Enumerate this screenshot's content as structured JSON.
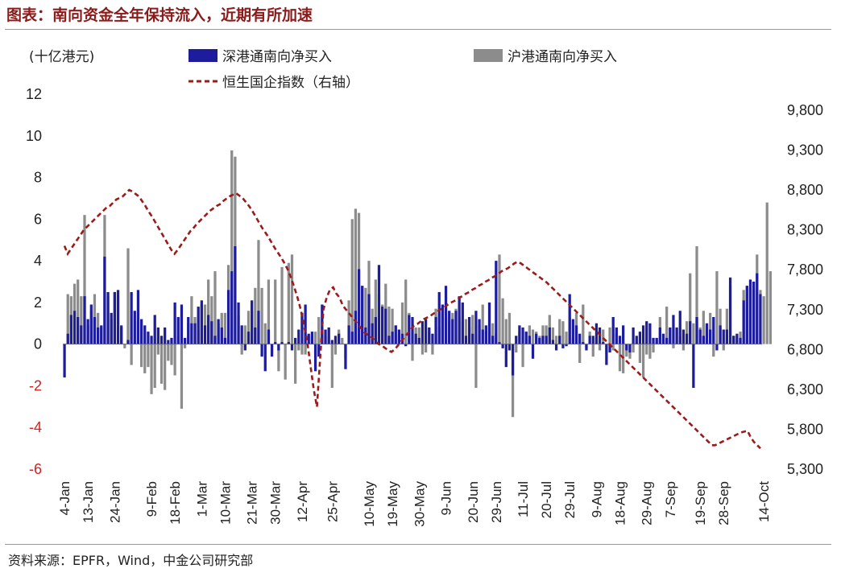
{
  "page": {
    "title": "图表：南向资金全年保持流入，近期有所加速",
    "source": "资料来源：EPFR，Wind，中金公司研究部"
  },
  "chart_data": {
    "type": "bar",
    "unit_label": "(十亿港元)",
    "colors": {
      "sz": "#1c1c9c",
      "sh": "#8c8c8c",
      "hscei": "#9b1b1b",
      "negative_tick": "#d42020"
    },
    "legend": {
      "sz": "深港通南向净买入",
      "sh": "沪港通南向净买入",
      "hscei": "恒生国企指数（右轴）"
    },
    "y_left": {
      "min": -6,
      "max": 12,
      "ticks": [
        12,
        10,
        8,
        6,
        4,
        2,
        0,
        -2,
        -4,
        -6
      ]
    },
    "y_right": {
      "min": 5300,
      "max": 9800,
      "ticks": [
        "9,800",
        "9,300",
        "8,800",
        "8,300",
        "7,800",
        "7,300",
        "6,800",
        "6,300",
        "5,800",
        "5,300"
      ]
    },
    "x_tick_labels": [
      "4-Jan",
      "13-Jan",
      "24-Jan",
      "9-Feb",
      "18-Feb",
      "1-Mar",
      "10-Mar",
      "21-Mar",
      "30-Mar",
      "12-Apr",
      "25-Apr",
      "10-May",
      "19-May",
      "30-May",
      "9-Jun",
      "20-Jun",
      "29-Jun",
      "11-Jul",
      "20-Jul",
      "29-Jul",
      "9-Aug",
      "18-Aug",
      "29-Aug",
      "7-Sep",
      "19-Sep",
      "28-Sep",
      "14-Oct"
    ],
    "x_tick_index": [
      0,
      7,
      15,
      26,
      33,
      41,
      48,
      56,
      63,
      71,
      80,
      91,
      98,
      106,
      114,
      122,
      129,
      137,
      144,
      151,
      159,
      166,
      174,
      181,
      190,
      197,
      209
    ],
    "series": [
      {
        "name": "深港通南向净买入",
        "values": [
          -1.6,
          0.5,
          1.4,
          1.6,
          1.3,
          0.9,
          2.3,
          1.2,
          1.9,
          1.3,
          0.8,
          0.9,
          4.2,
          2.5,
          1.5,
          2.5,
          2.6,
          0.9,
          0.0,
          0.2,
          2.5,
          1.6,
          2.6,
          1.2,
          0.9,
          0.6,
          0.4,
          1.4,
          0.8,
          0.4,
          0.8,
          0.2,
          0.3,
          2.0,
          1.3,
          1.9,
          0.3,
          1.3,
          1.0,
          1.0,
          1.8,
          2.1,
          0.9,
          1.4,
          1.1,
          0.4,
          1.2,
          0.8,
          0.3,
          2.6,
          3.5,
          4.7,
          2.0,
          0.9,
          -0.3,
          0.6,
          2.1,
          0.8,
          1.6,
          -0.6,
          -1.3,
          0.7,
          -0.6,
          0.1,
          -0.3,
          0.1,
          0.0,
          0.1,
          -0.3,
          0.3,
          0.7,
          1.5,
          1.9,
          0.5,
          0.6,
          -1.3,
          -0.6,
          1.9,
          0.7,
          0.8,
          0.2,
          0.4,
          0.5,
          0.0,
          -1.2,
          0.9,
          0.6,
          1.6,
          3.6,
          2.8,
          0.8,
          2.4,
          1.0,
          1.3,
          3.8,
          1.8,
          1.7,
          0.4,
          0.6,
          0.9,
          0.7,
          0.5,
          -0.1,
          1.4,
          1.3,
          0.5,
          0.3,
          1.1,
          1.2,
          0.8,
          0.5,
          1.3,
          2.5,
          1.9,
          2.8,
          1.6,
          1.2,
          1.6,
          2.3,
          2.0,
          0.4,
          1.3,
          0.5,
          1.6,
          1.2,
          0.7,
          0.9,
          2.0,
          0.4,
          4.0,
          0.1,
          -0.2,
          -1.1,
          -0.3,
          -1.5,
          0.4,
          0.9,
          0.8,
          0.6,
          0.4,
          -0.7,
          0.5,
          0.3,
          0.4,
          0.4,
          0.8,
          0.2,
          -0.3,
          0.4,
          -0.2,
          -0.1,
          2.4,
          1.2,
          0.9,
          0.5,
          0.1,
          -0.3,
          0.4,
          0.4,
          1.0,
          0.8,
          0.1,
          -1.0,
          -0.4,
          1.3,
          0.8,
          0.4,
          0.9,
          -0.3,
          -0.4,
          0.8,
          0.4,
          0.6,
          0.9,
          1.1,
          1.0,
          0.3,
          0.3,
          0.8,
          0.5,
          0.3,
          0.8,
          1.4,
          0.8,
          1.6,
          0.7,
          0.5,
          1.1,
          -2.1,
          1.3,
          0.7,
          0.4,
          1.0,
          0.7,
          1.3,
          -0.3,
          0.9,
          0.7,
          0.7,
          3.2,
          0.4,
          0.5,
          0.3,
          2.1,
          2.8,
          3.1,
          3.0,
          3.4,
          2.4
        ]
      },
      {
        "name": "沪港通南向净买入",
        "values": [
          0.0,
          2.4,
          2.3,
          2.9,
          3.1,
          2.3,
          6.2,
          0.9,
          1.6,
          2.4,
          1.5,
          0.8,
          6.2,
          2.3,
          1.2,
          2.5,
          2.3,
          0.8,
          -0.2,
          4.6,
          -1.0,
          0.1,
          1.1,
          -1.1,
          -1.4,
          -1.1,
          -2.4,
          -2.1,
          -0.5,
          -1.9,
          -2.2,
          -0.8,
          -1.0,
          -1.5,
          0.4,
          -3.1,
          -0.2,
          1.0,
          2.3,
          1.3,
          0.7,
          1.9,
          1.9,
          3.1,
          2.3,
          3.5,
          1.0,
          1.5,
          1.5,
          3.8,
          9.3,
          9.0,
          1.4,
          -0.5,
          0.9,
          1.6,
          1.6,
          2.7,
          5.0,
          2.7,
          1.0,
          3.1,
          -0.4,
          3.1,
          -1.3,
          3.7,
          -1.7,
          3.9,
          4.3,
          -1.9,
          -0.3,
          -0.5,
          -0.5,
          0.1,
          0.4,
          0.6,
          1.3,
          1.1,
          0.4,
          0.8,
          -2.1,
          -0.5,
          0.7,
          0.3,
          -0.7,
          2.1,
          6.0,
          6.5,
          6.3,
          2.8,
          2.7,
          4.0,
          1.7,
          3.1,
          2.4,
          1.9,
          2.9,
          1.8,
          1.7,
          0.9,
          0.5,
          2.0,
          3.1,
          1.5,
          -0.8,
          0.8,
          0.8,
          -0.5,
          -0.4,
          0.6,
          -0.5,
          1.7,
          0.8,
          1.5,
          1.3,
          1.1,
          1.5,
          1.7,
          1.3,
          1.1,
          1.2,
          0.8,
          1.4,
          -2.1,
          0.9,
          1.9,
          0.6,
          0.6,
          1.0,
          0.5,
          4.3,
          2.2,
          1.2,
          1.5,
          -3.5,
          -0.4,
          0.6,
          -1.1,
          0.6,
          0.9,
          0.7,
          0.6,
          0.4,
          0.9,
          0.9,
          1.4,
          0.8,
          0.4,
          1.2,
          1.1,
          0.6,
          1.3,
          0.3,
          1.5,
          -0.9,
          1.9,
          -0.2,
          0.6,
          -0.6,
          0.3,
          -0.3,
          0.7,
          -0.5,
          0.8,
          -0.3,
          0.5,
          -1.3,
          -1.4,
          -0.6,
          -0.7,
          -0.4,
          0.1,
          -0.9,
          -1.6,
          -0.5,
          -0.7,
          -0.4,
          0.2,
          1.3,
          0.2,
          1.8,
          0.8,
          -0.2,
          0.7,
          0.4,
          -0.3,
          1.1,
          3.4,
          1.0,
          4.7,
          0.8,
          1.6,
          0.9,
          1.5,
          -0.6,
          3.5,
          1.7,
          -0.3,
          1.7,
          2.8,
          0.4,
          0.4,
          0.6,
          2.6,
          2.8,
          2.6,
          2.7,
          4.3,
          2.6,
          2.3,
          6.8,
          3.5
        ]
      },
      {
        "name": "恒生国企指数（右轴）",
        "axis": "right",
        "values": [
          8100,
          8000,
          8060,
          8120,
          8180,
          8240,
          8300,
          8340,
          8380,
          8420,
          8460,
          8500,
          8540,
          8580,
          8600,
          8640,
          8680,
          8700,
          8720,
          8760,
          8800,
          8780,
          8750,
          8720,
          8660,
          8600,
          8530,
          8470,
          8400,
          8330,
          8260,
          8190,
          8120,
          8050,
          8000,
          8050,
          8110,
          8170,
          8230,
          8290,
          8330,
          8380,
          8420,
          8460,
          8500,
          8540,
          8570,
          8600,
          8620,
          8660,
          8690,
          8720,
          8740,
          8760,
          8730,
          8700,
          8650,
          8600,
          8540,
          8470,
          8400,
          8330,
          8270,
          8210,
          8140,
          8070,
          8010,
          7950,
          7880,
          7800,
          7700,
          7580,
          7450,
          7300,
          7100,
          6900,
          6600,
          6300,
          6080,
          6700,
          7300,
          7450,
          7550,
          7580,
          7500,
          7450,
          7350,
          7300,
          7250,
          7200,
          7150,
          7100,
          7050,
          7000,
          6980,
          6950,
          6900,
          6870,
          6850,
          6820,
          6790,
          6770,
          6800,
          6850,
          6900,
          6950,
          7000,
          7050,
          7100,
          7120,
          7150,
          7180,
          7200,
          7220,
          7250,
          7270,
          7300,
          7320,
          7350,
          7380,
          7400,
          7420,
          7450,
          7470,
          7500,
          7520,
          7550,
          7570,
          7600,
          7620,
          7650,
          7670,
          7700,
          7720,
          7750,
          7780,
          7800,
          7820,
          7850,
          7880,
          7900,
          7880,
          7850,
          7820,
          7790,
          7760,
          7730,
          7700,
          7670,
          7640,
          7600,
          7560,
          7520,
          7480,
          7440,
          7400,
          7360,
          7320,
          7280,
          7240,
          7200,
          7160,
          7120,
          7080,
          7040,
          7000,
          6960,
          6920,
          6880,
          6840,
          6800,
          6760,
          6720,
          6680,
          6640,
          6600,
          6560,
          6520,
          6480,
          6440,
          6400,
          6360,
          6320,
          6280,
          6240,
          6200,
          6160,
          6120,
          6080,
          6040,
          6000,
          5960,
          5920,
          5880,
          5840,
          5800,
          5760,
          5720,
          5680,
          5640,
          5600,
          5600,
          5620,
          5640,
          5660,
          5680,
          5700,
          5720,
          5740,
          5760,
          5770,
          5780,
          5700,
          5640,
          5600,
          5560
        ]
      }
    ]
  }
}
